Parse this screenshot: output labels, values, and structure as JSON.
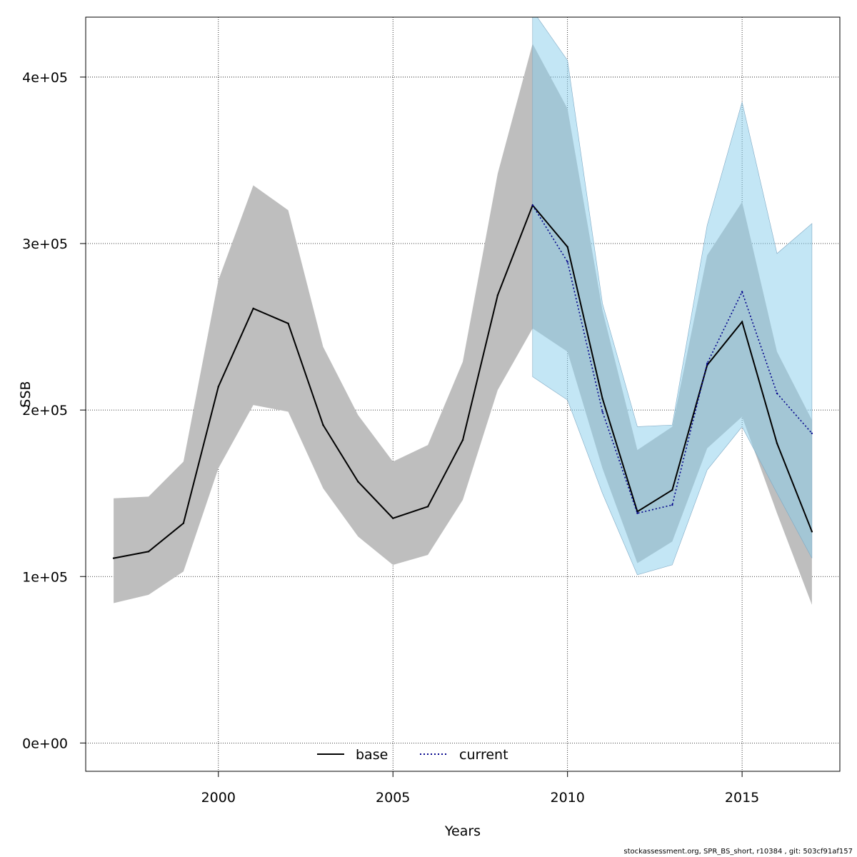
{
  "chart_data": {
    "type": "line",
    "xlabel": "Years",
    "ylabel": "SSB",
    "xlim": [
      1996.2,
      2017.8
    ],
    "ylim": [
      -17000,
      436000
    ],
    "x_ticks": [
      2000,
      2005,
      2010,
      2015
    ],
    "y_ticks": [
      0,
      100000,
      200000,
      300000,
      400000
    ],
    "y_tick_labels": [
      "0e+00",
      "1e+05",
      "2e+05",
      "3e+05",
      "4e+05"
    ],
    "grid": true,
    "legend_position": "bottom",
    "series": [
      {
        "name": "base",
        "line_style": "solid",
        "line_color": "#000000",
        "band_color": "#bebebe",
        "x": [
          1997,
          1998,
          1999,
          2000,
          2001,
          2002,
          2003,
          2004,
          2005,
          2006,
          2007,
          2008,
          2009,
          2010,
          2011,
          2012,
          2013,
          2014,
          2015,
          2016,
          2017
        ],
        "y": [
          111000,
          115000,
          132000,
          214000,
          261000,
          252000,
          191000,
          157000,
          135000,
          142000,
          182000,
          269000,
          323000,
          298000,
          207000,
          139000,
          152000,
          227000,
          253000,
          180000,
          127000
        ],
        "lower": [
          84000,
          89000,
          103000,
          165000,
          203000,
          199000,
          153000,
          124000,
          107000,
          113000,
          146000,
          212000,
          249000,
          235000,
          165000,
          108000,
          121000,
          177000,
          196000,
          138000,
          83000
        ],
        "upper": [
          147000,
          148000,
          169000,
          278000,
          335000,
          320000,
          238000,
          197000,
          169000,
          179000,
          229000,
          342000,
          420000,
          381000,
          260000,
          176000,
          190000,
          293000,
          325000,
          235000,
          194000
        ]
      },
      {
        "name": "current",
        "line_style": "dotted",
        "line_color": "#00008b",
        "band_color": "#87ceeb",
        "x": [
          2009,
          2010,
          2011,
          2012,
          2013,
          2014,
          2015,
          2016,
          2017
        ],
        "y": [
          323000,
          289000,
          199000,
          138000,
          143000,
          228000,
          271000,
          210000,
          186000
        ],
        "lower": [
          220000,
          206000,
          150000,
          101000,
          107000,
          164000,
          190000,
          150000,
          111000
        ],
        "upper": [
          440000,
          410000,
          264000,
          190000,
          191000,
          311000,
          385000,
          294000,
          312000
        ]
      }
    ]
  },
  "footer_text": "stockassessment.org, SPR_BS_short, r10384 , git: 503cf91af157"
}
